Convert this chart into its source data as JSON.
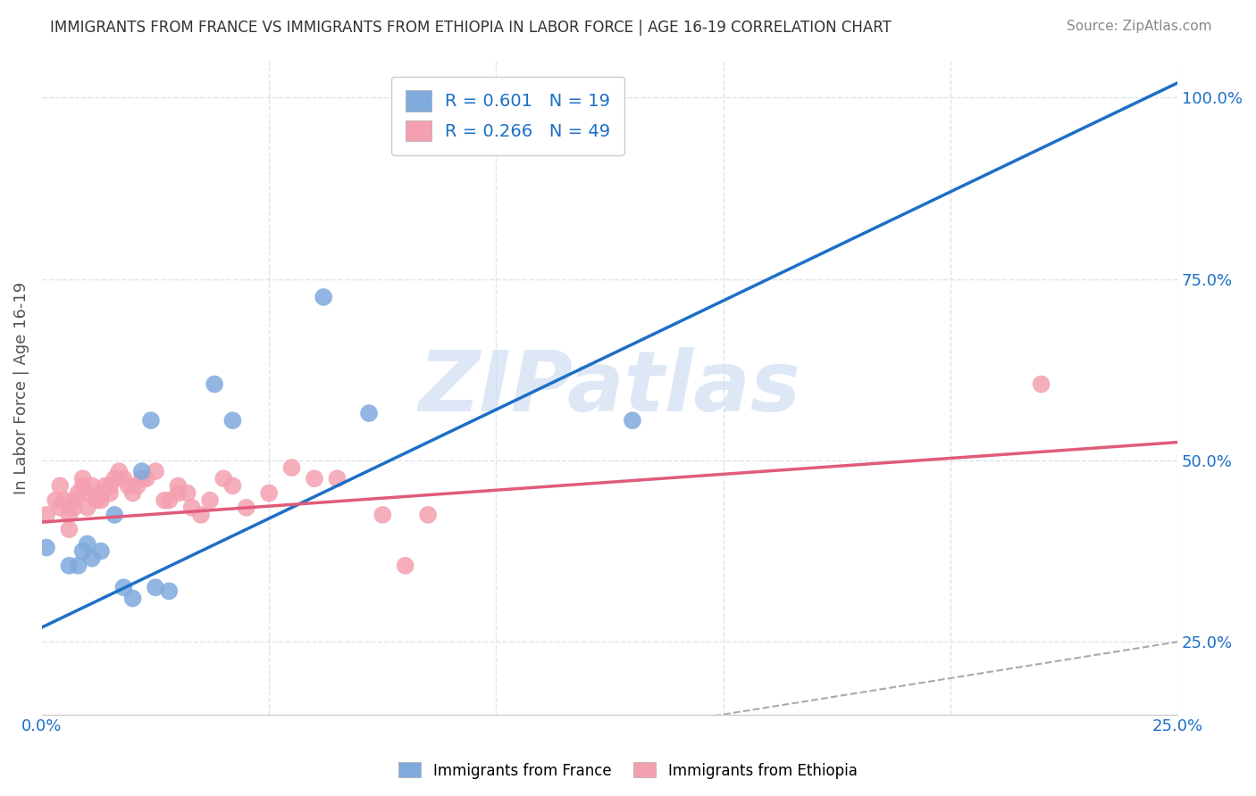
{
  "title": "IMMIGRANTS FROM FRANCE VS IMMIGRANTS FROM ETHIOPIA IN LABOR FORCE | AGE 16-19 CORRELATION CHART",
  "source": "Source: ZipAtlas.com",
  "xlabel": "",
  "ylabel": "In Labor Force | Age 16-19",
  "xlim": [
    0.0,
    0.25
  ],
  "ylim": [
    0.15,
    1.05
  ],
  "xticks": [
    0.0,
    0.05,
    0.1,
    0.15,
    0.2,
    0.25
  ],
  "xticklabels": [
    "0.0%",
    "",
    "",
    "",
    "",
    "25.0%"
  ],
  "yticks_right": [
    0.25,
    0.5,
    0.75,
    1.0
  ],
  "ytick_right_labels": [
    "25.0%",
    "50.0%",
    "75.0%",
    "100.0%"
  ],
  "france_color": "#7faadc",
  "ethiopia_color": "#f4a0b0",
  "france_line_color": "#1c6fc7",
  "ethiopia_line_color": "#e05b7a",
  "france_R": 0.601,
  "france_N": 19,
  "ethiopia_R": 0.266,
  "ethiopia_N": 49,
  "france_scatter_x": [
    0.001,
    0.006,
    0.008,
    0.009,
    0.01,
    0.011,
    0.013,
    0.016,
    0.018,
    0.02,
    0.022,
    0.024,
    0.025,
    0.028,
    0.038,
    0.042,
    0.062,
    0.072,
    0.13
  ],
  "france_scatter_y": [
    0.38,
    0.355,
    0.355,
    0.375,
    0.385,
    0.365,
    0.375,
    0.425,
    0.325,
    0.31,
    0.485,
    0.555,
    0.325,
    0.32,
    0.605,
    0.555,
    0.725,
    0.565,
    0.555
  ],
  "ethiopia_scatter_x": [
    0.001,
    0.003,
    0.004,
    0.004,
    0.005,
    0.006,
    0.006,
    0.007,
    0.007,
    0.008,
    0.009,
    0.009,
    0.01,
    0.01,
    0.011,
    0.012,
    0.013,
    0.013,
    0.014,
    0.015,
    0.015,
    0.016,
    0.017,
    0.018,
    0.019,
    0.02,
    0.021,
    0.022,
    0.023,
    0.025,
    0.027,
    0.028,
    0.03,
    0.03,
    0.032,
    0.033,
    0.035,
    0.037,
    0.04,
    0.042,
    0.045,
    0.05,
    0.055,
    0.06,
    0.065,
    0.075,
    0.08,
    0.085,
    0.22
  ],
  "ethiopia_scatter_y": [
    0.425,
    0.445,
    0.435,
    0.465,
    0.445,
    0.405,
    0.425,
    0.435,
    0.445,
    0.455,
    0.465,
    0.475,
    0.435,
    0.455,
    0.465,
    0.445,
    0.445,
    0.455,
    0.465,
    0.455,
    0.465,
    0.475,
    0.485,
    0.475,
    0.465,
    0.455,
    0.465,
    0.475,
    0.475,
    0.485,
    0.445,
    0.445,
    0.455,
    0.465,
    0.455,
    0.435,
    0.425,
    0.445,
    0.475,
    0.465,
    0.435,
    0.455,
    0.49,
    0.475,
    0.475,
    0.425,
    0.355,
    0.425,
    0.605
  ],
  "diag_line_color": "#aaaaaa",
  "watermark": "ZIPatlas",
  "watermark_color": "#c8d8f0",
  "background_color": "#ffffff",
  "grid_color": "#dde3ee",
  "axis_color": "#1c6fc7",
  "title_color": "#333333",
  "france_trend_x0": 0.0,
  "france_trend_y0": 0.27,
  "france_trend_x1": 0.25,
  "france_trend_y1": 1.02,
  "ethiopia_trend_x0": 0.0,
  "ethiopia_trend_y0": 0.415,
  "ethiopia_trend_x1": 0.25,
  "ethiopia_trend_y1": 0.525
}
